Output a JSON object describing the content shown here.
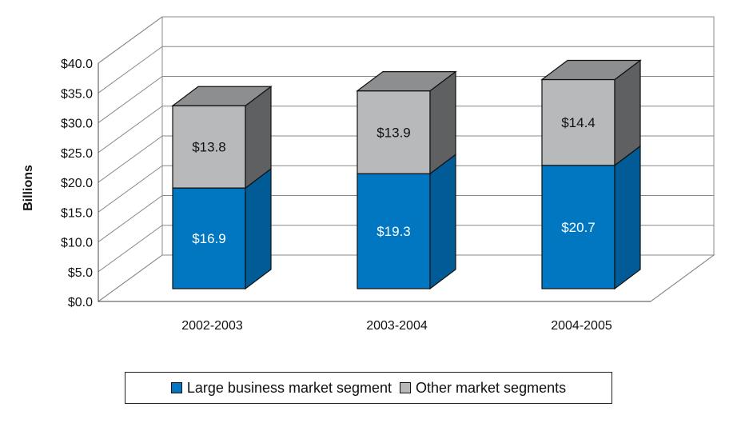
{
  "chart_data": {
    "type": "bar",
    "stacked": true,
    "three_d": true,
    "categories": [
      "2002-2003",
      "2003-2004",
      "2004-2005"
    ],
    "series": [
      {
        "name": "Large business market segment",
        "values": [
          16.9,
          19.3,
          20.7
        ],
        "labels": [
          "$16.9",
          "$19.3",
          "$20.7"
        ],
        "color": "#0077c0"
      },
      {
        "name": "Other market segments",
        "values": [
          13.8,
          13.9,
          14.4
        ],
        "labels": [
          "$13.8",
          "$13.9",
          "$14.4"
        ],
        "color": "#b8b9bb"
      }
    ],
    "ylabel": "Billions",
    "ylim": [
      0,
      40
    ],
    "yticks": [
      "$0.0",
      "$5.0",
      "$10.0",
      "$15.0",
      "$20.0",
      "$25.0",
      "$30.0",
      "$35.0",
      "$40.0"
    ],
    "grid": true,
    "legend_position": "bottom"
  }
}
